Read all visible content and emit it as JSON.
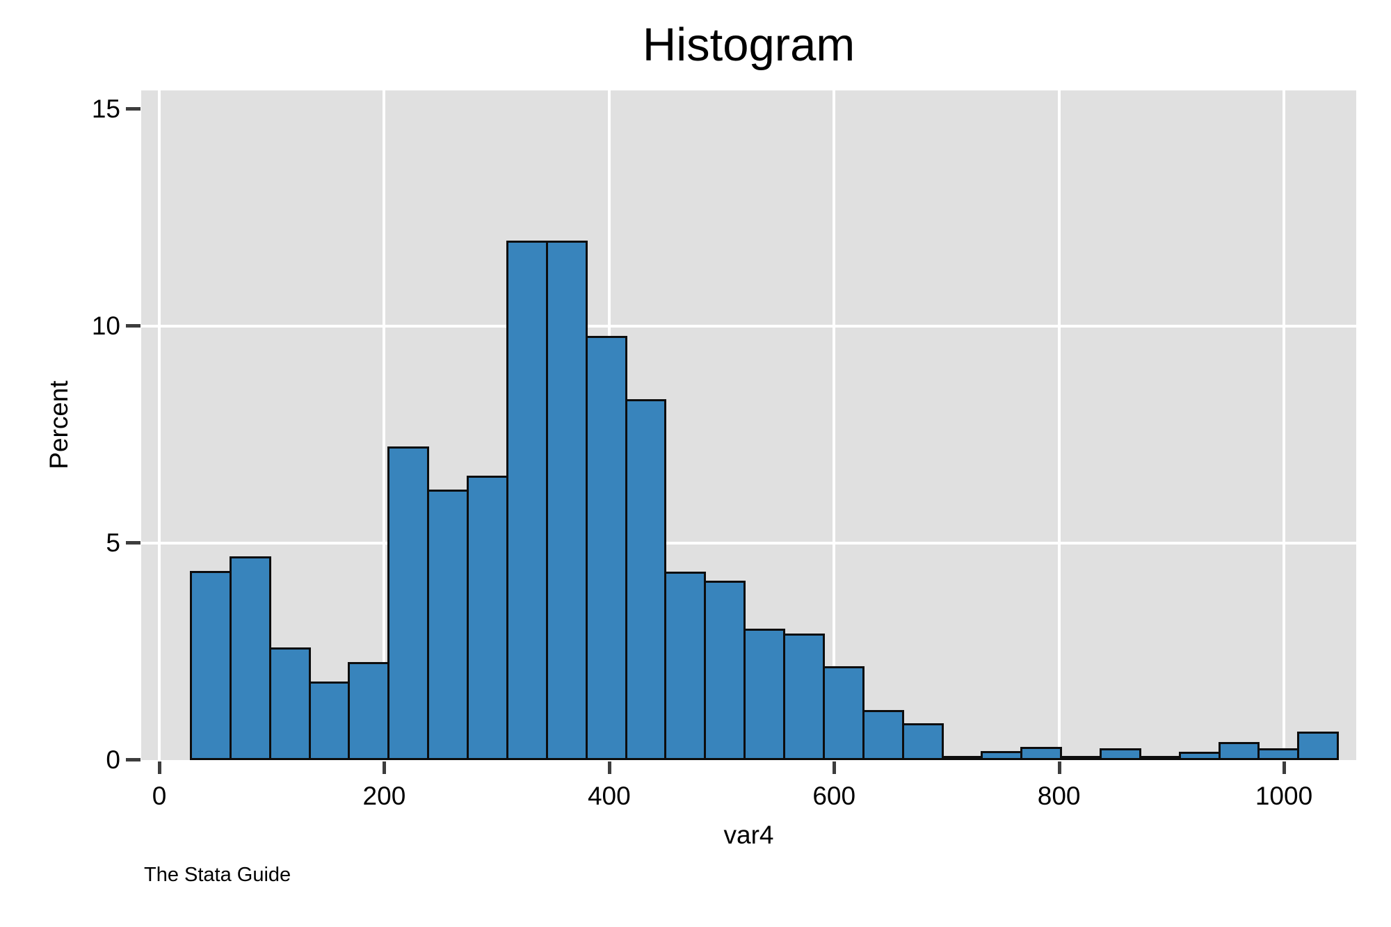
{
  "chart_data": {
    "type": "bar",
    "subtype": "histogram",
    "title": "Histogram",
    "xlabel": "var4",
    "ylabel": "Percent",
    "caption": "The Stata Guide",
    "bin_start": 27.2,
    "bin_width": 35.17,
    "bin_count": 29,
    "values": [
      4.36,
      4.69,
      2.6,
      1.81,
      2.26,
      7.23,
      6.23,
      6.56,
      11.97,
      11.97,
      9.77,
      8.32,
      4.35,
      4.14,
      3.03,
      2.92,
      2.17,
      1.16,
      0.85,
      0.09,
      0.21,
      0.3,
      0.09,
      0.27,
      0.08,
      0.19,
      0.41,
      0.27,
      0.65
    ],
    "x_ticks": [
      0,
      200,
      400,
      600,
      800,
      1000
    ],
    "y_ticks": [
      0,
      5,
      10,
      15
    ],
    "x_gridlines": [
      0,
      200,
      400,
      600,
      800,
      1000
    ],
    "y_gridlines": [
      5,
      10
    ],
    "xlim": [
      -16.1,
      1064.3
    ],
    "ylim": [
      0,
      15.43
    ],
    "grid": true,
    "legend": "none",
    "colors": {
      "bar_fill": "#3884bc",
      "bar_edge": "#0d0d0d",
      "plot_background": "#e0e0e0",
      "gridline": "#ffffff",
      "tick": "#3d3d3d",
      "text": "#000000",
      "page_background": "#ffffff"
    }
  }
}
